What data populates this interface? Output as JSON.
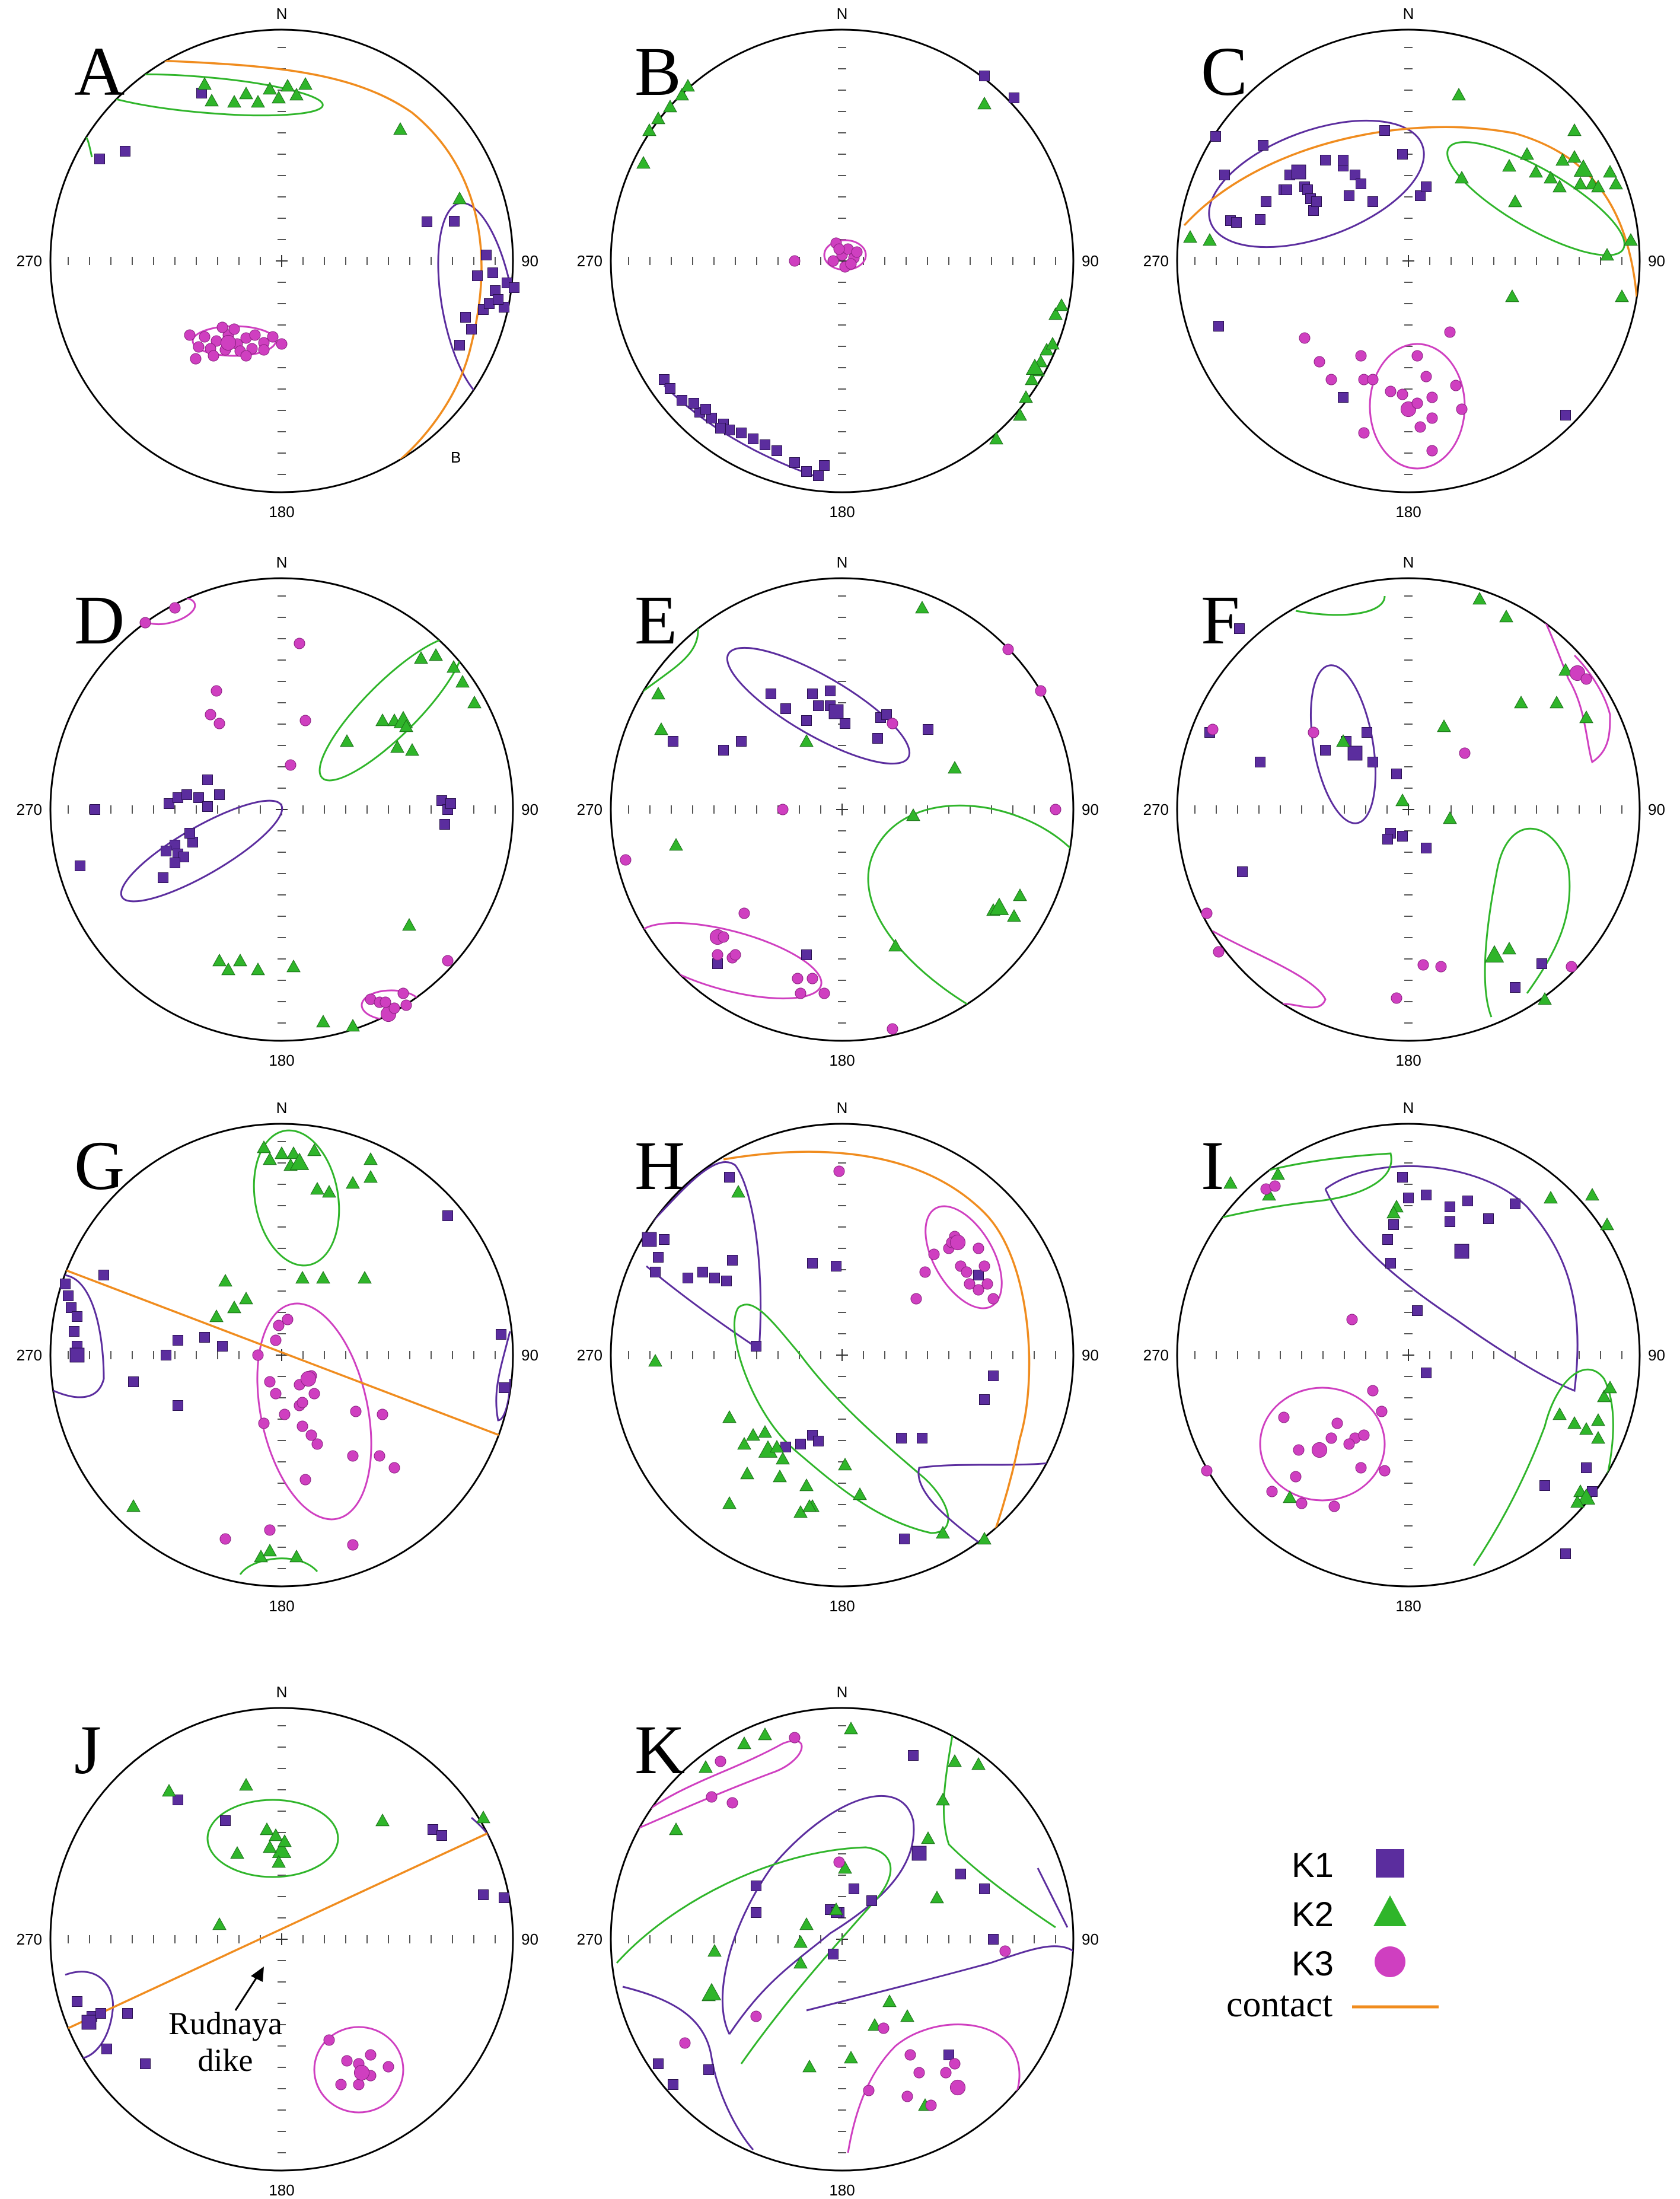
{
  "figure": {
    "colors": {
      "K1": "#5b2d9e",
      "K2": "#2fb52a",
      "K3": "#cf3fc0",
      "contact": "#f08c1e",
      "frame": "#000000"
    },
    "direction_labels": {
      "north": "N",
      "east": "90",
      "south": "180",
      "west": "270"
    },
    "panels": [
      {
        "letter": "A",
        "extra_label": "B"
      },
      {
        "letter": "B"
      },
      {
        "letter": "C"
      },
      {
        "letter": "D"
      },
      {
        "letter": "E"
      },
      {
        "letter": "F"
      },
      {
        "letter": "G"
      },
      {
        "letter": "H"
      },
      {
        "letter": "I"
      },
      {
        "letter": "J",
        "annotation": [
          "Rudnaya",
          "dike"
        ]
      },
      {
        "letter": "K"
      }
    ],
    "legend": [
      {
        "label": "K1",
        "symbol": "square",
        "color": "#5b2d9e"
      },
      {
        "label": "K2",
        "symbol": "triangle",
        "color": "#2fb52a"
      },
      {
        "label": "K3",
        "symbol": "circle",
        "color": "#cf3fc0"
      },
      {
        "label": "contact",
        "symbol": "line",
        "color": "#f08c1e"
      }
    ]
  }
}
